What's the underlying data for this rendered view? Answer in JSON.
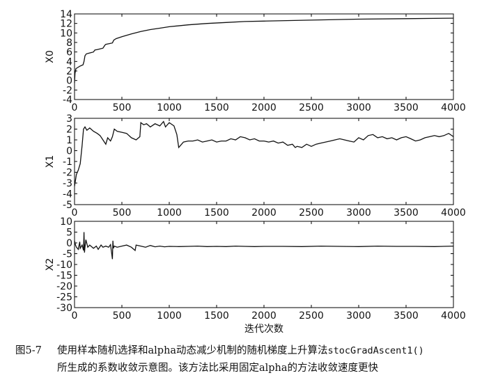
{
  "chart_data": [
    {
      "type": "line",
      "ylabel": "X0",
      "xlim": [
        0,
        4000
      ],
      "ylim": [
        -4,
        14
      ],
      "xticks": [
        0,
        500,
        1000,
        1500,
        2000,
        2500,
        3000,
        3500,
        4000
      ],
      "yticks": [
        -4,
        -2,
        0,
        2,
        4,
        6,
        8,
        10,
        12,
        14
      ],
      "series": [
        {
          "x": [
            0,
            5,
            15,
            40,
            55,
            90,
            100,
            110,
            125,
            200,
            215,
            240,
            300,
            320,
            330,
            400,
            415,
            440,
            500,
            600,
            700,
            800,
            900,
            1000,
            1200,
            1400,
            1600,
            1800,
            2000,
            2500,
            3000,
            3500,
            4000
          ],
          "y": [
            -0.5,
            1.5,
            2.5,
            2.8,
            3.0,
            3.3,
            4.0,
            5.2,
            5.6,
            6.0,
            6.4,
            6.5,
            6.8,
            7.4,
            7.6,
            7.9,
            8.5,
            8.8,
            9.2,
            9.8,
            10.3,
            10.7,
            11.0,
            11.3,
            11.7,
            12.0,
            12.2,
            12.4,
            12.5,
            12.7,
            12.9,
            13.0,
            13.1
          ]
        }
      ]
    },
    {
      "type": "line",
      "ylabel": "X1",
      "xlim": [
        0,
        4000
      ],
      "ylim": [
        -5,
        3
      ],
      "xticks": [
        0,
        500,
        1000,
        1500,
        2000,
        2500,
        3000,
        3500,
        4000
      ],
      "yticks": [
        -5,
        -4,
        -3,
        -2,
        -1,
        0,
        1,
        2,
        3
      ],
      "series": [
        {
          "x": [
            0,
            20,
            40,
            60,
            80,
            95,
            110,
            130,
            160,
            200,
            240,
            270,
            300,
            330,
            350,
            380,
            400,
            420,
            450,
            500,
            550,
            600,
            650,
            690,
            700,
            730,
            760,
            800,
            850,
            900,
            940,
            960,
            1000,
            1050,
            1080,
            1100,
            1120,
            1150,
            1200,
            1250,
            1300,
            1350,
            1400,
            1450,
            1500,
            1550,
            1600,
            1650,
            1700,
            1750,
            1800,
            1850,
            1900,
            1950,
            2000,
            2050,
            2100,
            2150,
            2200,
            2250,
            2300,
            2330,
            2350,
            2400,
            2450,
            2500,
            2550,
            2600,
            2650,
            2700,
            2750,
            2800,
            2850,
            2900,
            2950,
            3000,
            3050,
            3100,
            3150,
            3200,
            3250,
            3300,
            3350,
            3400,
            3450,
            3500,
            3550,
            3600,
            3650,
            3700,
            3750,
            3800,
            3850,
            3900,
            3950,
            4000
          ],
          "y": [
            -3.3,
            -2.2,
            -1.8,
            -1.2,
            0.5,
            2.0,
            2.2,
            1.9,
            2.1,
            1.8,
            1.6,
            1.4,
            1.0,
            0.6,
            1.2,
            0.9,
            1.3,
            2.0,
            1.8,
            1.7,
            1.6,
            1.2,
            1.0,
            1.3,
            2.6,
            2.4,
            2.5,
            2.2,
            2.5,
            2.3,
            2.7,
            2.2,
            2.6,
            2.3,
            1.5,
            0.3,
            0.5,
            0.8,
            0.9,
            0.9,
            1.0,
            0.8,
            0.9,
            1.0,
            0.8,
            0.9,
            0.9,
            1.1,
            1.0,
            1.3,
            1.2,
            1.0,
            1.1,
            0.9,
            0.9,
            0.8,
            0.9,
            0.7,
            0.8,
            0.5,
            0.6,
            0.3,
            0.4,
            0.3,
            0.6,
            0.4,
            0.6,
            0.7,
            0.8,
            0.9,
            1.0,
            1.1,
            1.0,
            0.9,
            0.8,
            1.2,
            1.0,
            1.4,
            1.5,
            1.2,
            1.3,
            1.1,
            1.2,
            1.0,
            1.2,
            1.3,
            1.1,
            0.9,
            1.0,
            1.2,
            1.3,
            1.4,
            1.3,
            1.4,
            1.6,
            1.3
          ]
        }
      ]
    },
    {
      "type": "line",
      "ylabel": "X2",
      "xlabel": "迭代次数",
      "xlim": [
        0,
        4000
      ],
      "ylim": [
        -30,
        10
      ],
      "xticks": [
        0,
        500,
        1000,
        1500,
        2000,
        2500,
        3000,
        3500,
        4000
      ],
      "yticks": [
        -30,
        -25,
        -20,
        -15,
        -10,
        -5,
        0,
        5,
        10
      ],
      "series": [
        {
          "x": [
            0,
            10,
            20,
            40,
            55,
            60,
            80,
            95,
            100,
            105,
            110,
            120,
            140,
            160,
            200,
            230,
            250,
            280,
            300,
            330,
            360,
            380,
            400,
            405,
            410,
            420,
            450,
            500,
            550,
            600,
            640,
            650,
            700,
            750,
            800,
            850,
            900,
            950,
            1000,
            1100,
            1200,
            1300,
            1400,
            1500,
            1600,
            1700,
            1800,
            1900,
            2000,
            2200,
            2400,
            2600,
            2800,
            3000,
            3200,
            3400,
            3600,
            3800,
            4000
          ],
          "y": [
            1.0,
            -1.0,
            -2.0,
            -3.0,
            0.5,
            -2.5,
            -1.0,
            -3.5,
            5.0,
            -4.5,
            -2.0,
            1.5,
            -2.0,
            -1.0,
            -2.5,
            -1.5,
            -3.0,
            -1.0,
            -2.0,
            -1.5,
            -2.0,
            -0.8,
            -7.5,
            1.0,
            -2.5,
            -1.5,
            -2.0,
            -1.5,
            -1.0,
            -2.0,
            -3.5,
            -1.0,
            -1.5,
            -2.0,
            -1.2,
            -1.8,
            -1.5,
            -1.8,
            -1.6,
            -1.7,
            -1.6,
            -1.5,
            -1.7,
            -1.6,
            -1.7,
            -1.5,
            -1.6,
            -1.7,
            -1.6,
            -1.6,
            -1.7,
            -1.5,
            -1.6,
            -1.7,
            -1.5,
            -1.6,
            -1.6,
            -1.7,
            -1.5
          ]
        }
      ]
    }
  ],
  "caption": {
    "number": "图5-7",
    "line1_before": "使用样本随机选择和alpha动态减少机制的随机梯度上升算法",
    "line1_code": "stocGradAscent1()",
    "line2": "所生成的系数收敛示意图。该方法比采用固定alpha的方法收敛速度更快"
  }
}
